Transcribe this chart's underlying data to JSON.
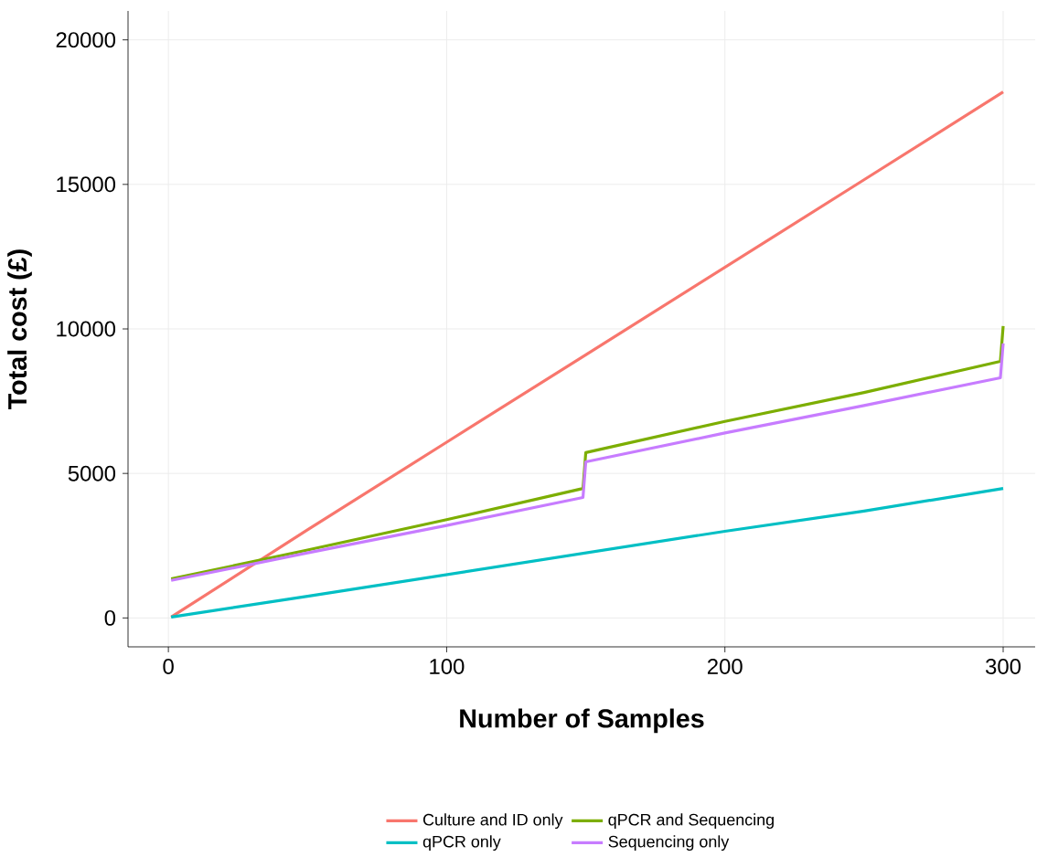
{
  "chart_data": {
    "type": "line",
    "xlabel": "Number of Samples",
    "ylabel": "Total cost (£)",
    "xlim": [
      -14.5,
      311.5
    ],
    "ylim": [
      -1000,
      21000
    ],
    "xticks": [
      0,
      100,
      200,
      300
    ],
    "yticks": [
      0,
      5000,
      10000,
      15000,
      20000
    ],
    "grid": true,
    "legend": "bottom",
    "line_style": "solid",
    "marker": "none",
    "series": [
      {
        "name": "Culture and ID only",
        "color": "#f8766d",
        "x": [
          1,
          50,
          100,
          150,
          200,
          250,
          300
        ],
        "values": [
          30,
          3050,
          6080,
          9100,
          12130,
          15160,
          18200
        ]
      },
      {
        "name": "qPCR and Sequencing",
        "color": "#7cae00",
        "x": [
          1,
          50,
          100,
          149,
          150,
          200,
          250,
          299,
          300
        ],
        "values": [
          1350,
          2350,
          3400,
          4480,
          5720,
          6800,
          7800,
          8880,
          10100
        ]
      },
      {
        "name": "qPCR only",
        "color": "#00bfc4",
        "x": [
          1,
          50,
          100,
          150,
          200,
          250,
          300
        ],
        "values": [
          30,
          750,
          1500,
          2250,
          3000,
          3700,
          4480
        ]
      },
      {
        "name": "Sequencing only",
        "color": "#c77cff",
        "x": [
          1,
          50,
          100,
          149,
          150,
          200,
          250,
          299,
          300
        ],
        "values": [
          1300,
          2250,
          3200,
          4170,
          5400,
          6400,
          7350,
          8310,
          9500
        ]
      }
    ]
  }
}
